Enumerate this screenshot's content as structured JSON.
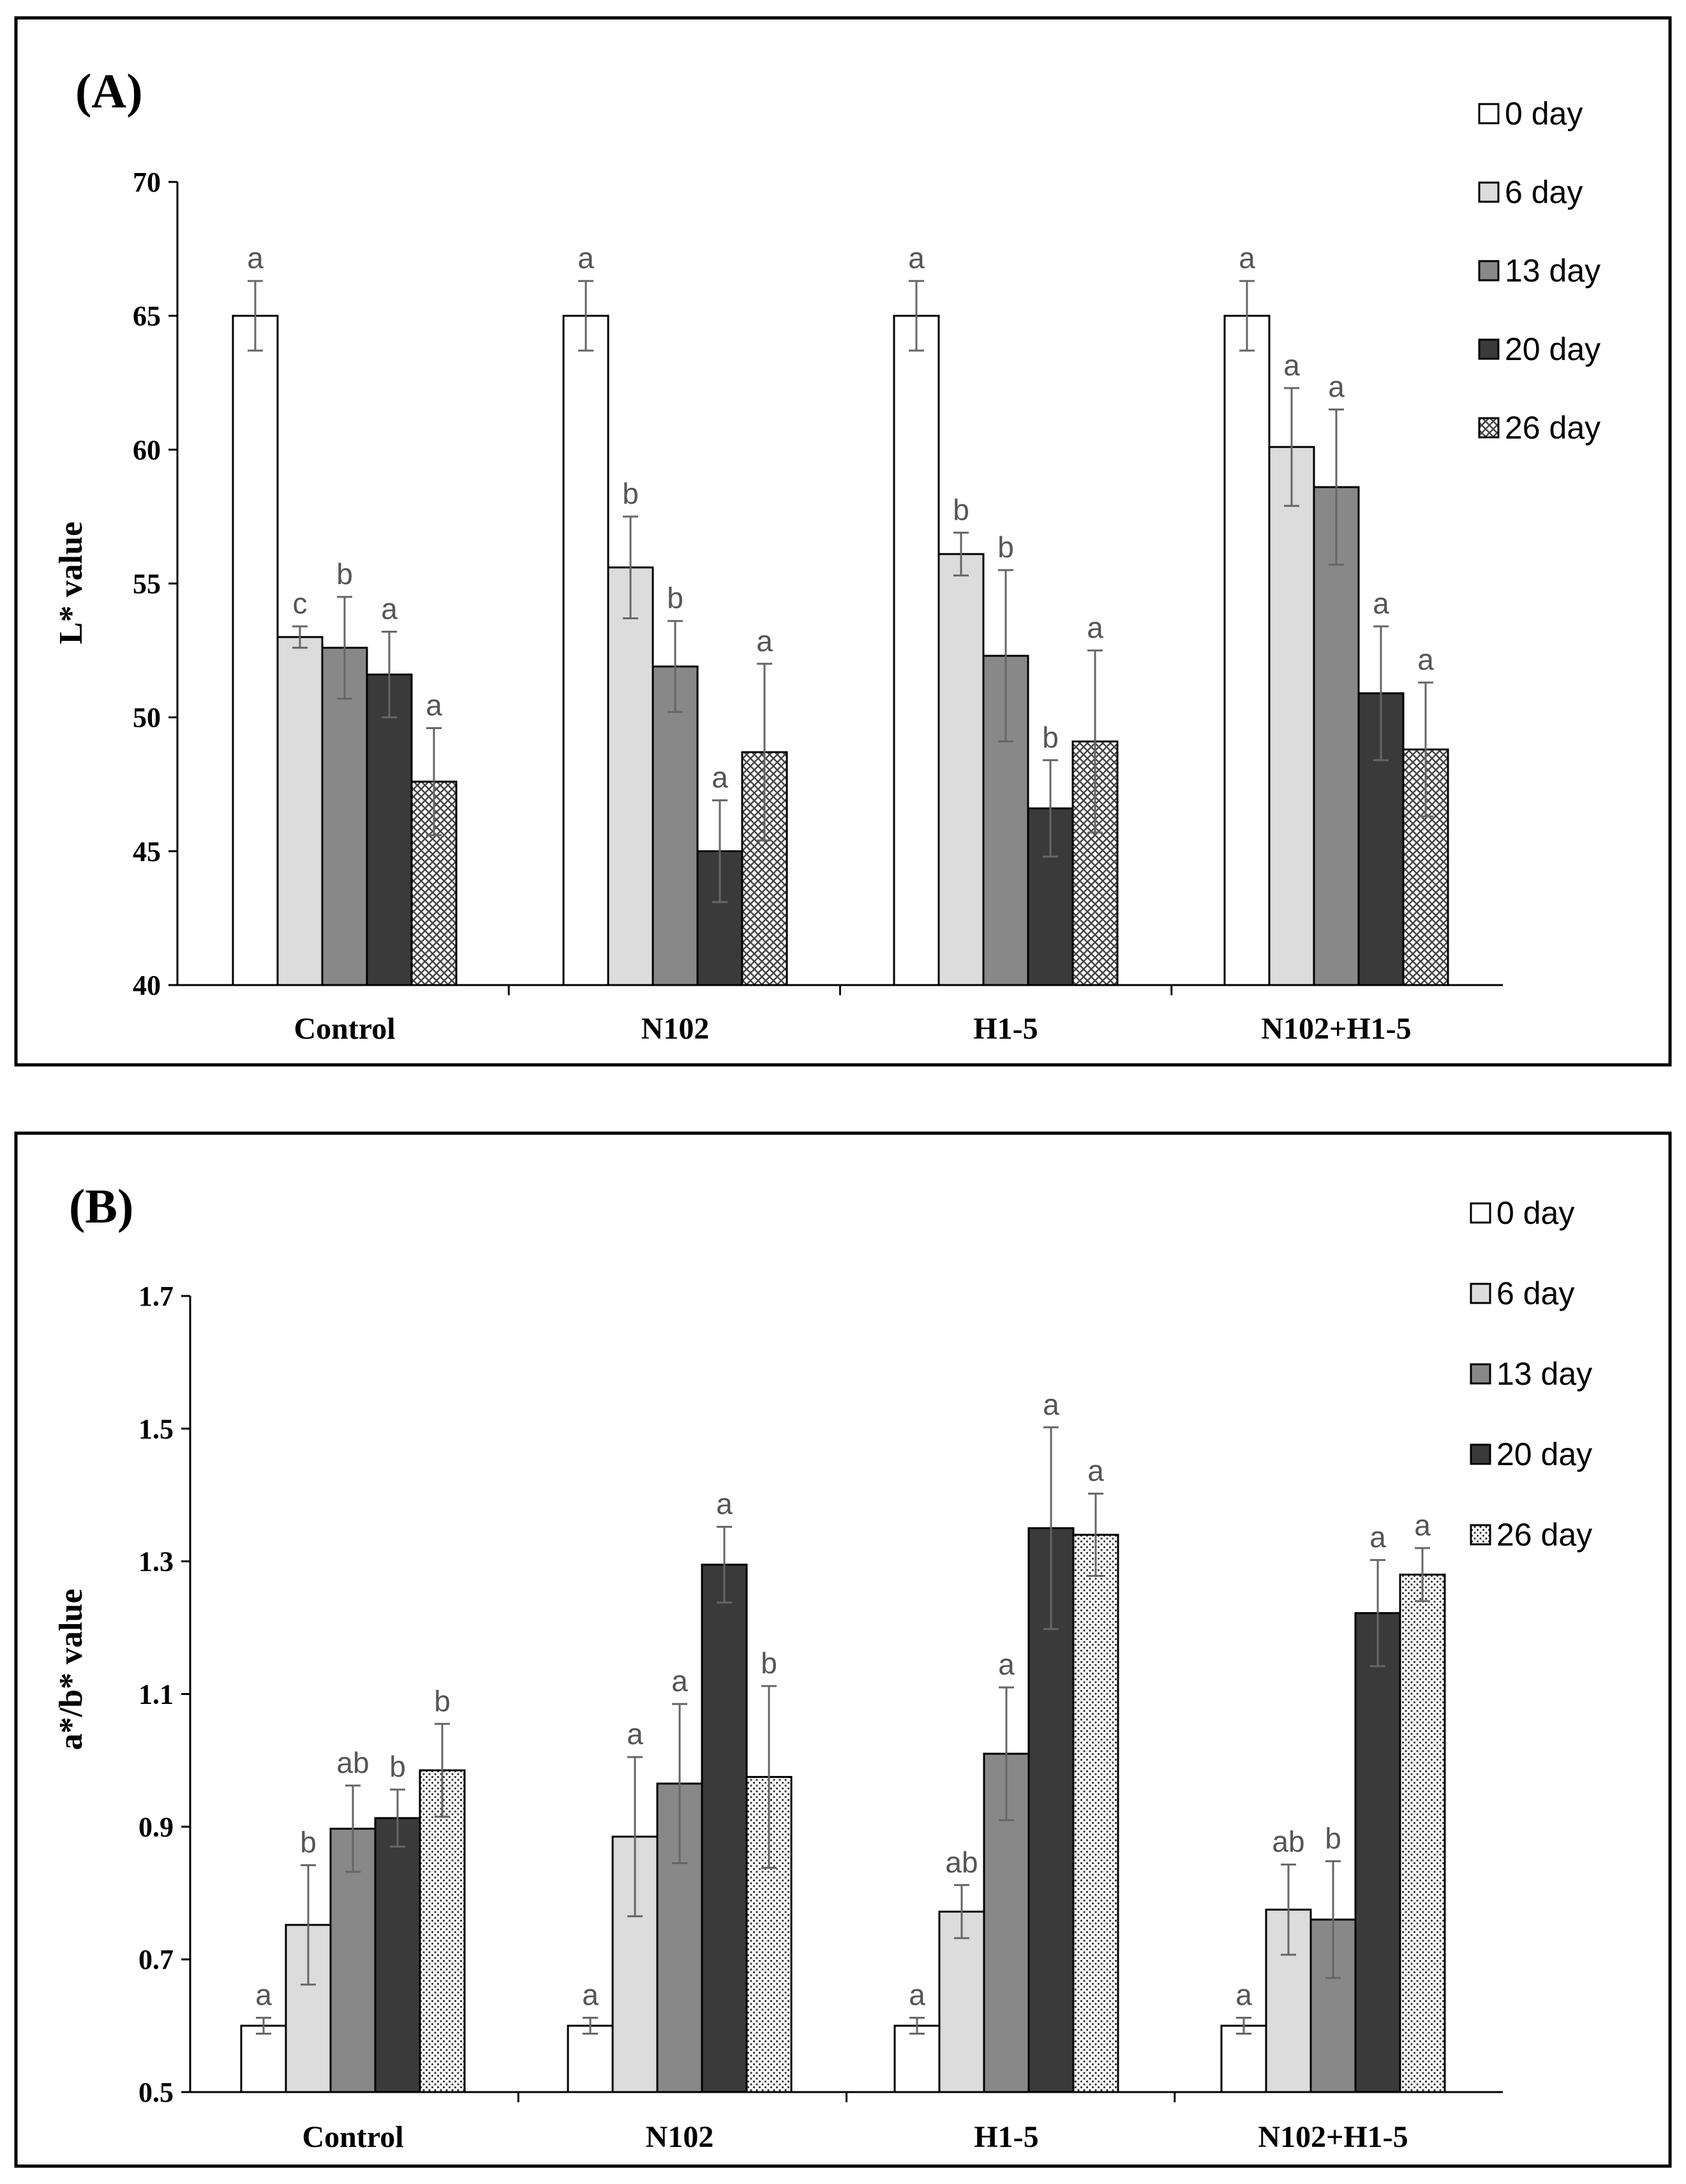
{
  "chart_data": [
    {
      "type": "bar",
      "panel_label": "(A)",
      "ylabel": "L* value",
      "ylim": [
        40,
        70
      ],
      "yticks": [
        "40",
        "45",
        "50",
        "55",
        "60",
        "65",
        "70"
      ],
      "categories": [
        "Control",
        "N102",
        "H1-5",
        "N102+H1-5"
      ],
      "legend_position": "top-right",
      "series": [
        {
          "name": "0 day",
          "color": "#ffffff",
          "pattern": "none",
          "values": [
            65,
            65,
            65,
            65
          ],
          "errors": [
            1.3,
            1.3,
            1.3,
            1.3
          ],
          "letters": [
            "a",
            "a",
            "a",
            "a"
          ]
        },
        {
          "name": "6 day",
          "color": "#dcdcdc",
          "pattern": "none",
          "values": [
            53,
            55.6,
            56.1,
            60.1
          ],
          "errors": [
            0.4,
            1.9,
            0.8,
            2.2
          ],
          "letters": [
            "c",
            "b",
            "b",
            "a"
          ]
        },
        {
          "name": "13 day",
          "color": "#888888",
          "pattern": "none",
          "values": [
            52.6,
            51.9,
            52.3,
            58.6
          ],
          "errors": [
            1.9,
            1.7,
            3.2,
            2.9
          ],
          "letters": [
            "b",
            "b",
            "b",
            "a"
          ]
        },
        {
          "name": "20 day",
          "color": "#3a3a3a",
          "pattern": "none",
          "values": [
            51.6,
            45,
            46.6,
            50.9
          ],
          "errors": [
            1.6,
            1.9,
            1.8,
            2.5
          ],
          "letters": [
            "a",
            "a",
            "b",
            "a"
          ]
        },
        {
          "name": "26 day",
          "color": "#ffffff",
          "pattern": "crosshatch",
          "values": [
            47.6,
            48.7,
            49.1,
            48.8
          ],
          "errors": [
            2.0,
            3.3,
            3.4,
            2.5
          ],
          "letters": [
            "a",
            "a",
            "a",
            "a"
          ]
        }
      ]
    },
    {
      "type": "bar",
      "panel_label": "(B)",
      "ylabel": "a*/b* value",
      "ylim": [
        0.5,
        1.7
      ],
      "yticks": [
        "0.5",
        "0.7",
        "0.9",
        "1.1",
        "1.3",
        "1.5",
        "1.7"
      ],
      "categories": [
        "Control",
        "N102",
        "H1-5",
        "N102+H1-5"
      ],
      "legend_position": "top-right",
      "series": [
        {
          "name": "0 day",
          "color": "#ffffff",
          "pattern": "none",
          "values": [
            0.6,
            0.6,
            0.6,
            0.6
          ],
          "errors": [
            0.012,
            0.012,
            0.012,
            0.012
          ],
          "letters": [
            "a",
            "a",
            "a",
            "a"
          ]
        },
        {
          "name": "6 day",
          "color": "#dcdcdc",
          "pattern": "none",
          "values": [
            0.752,
            0.885,
            0.772,
            0.775
          ],
          "errors": [
            0.09,
            0.12,
            0.04,
            0.068
          ],
          "letters": [
            "b",
            "a",
            "ab",
            "ab"
          ]
        },
        {
          "name": "13 day",
          "color": "#888888",
          "pattern": "none",
          "values": [
            0.897,
            0.965,
            1.01,
            0.76
          ],
          "errors": [
            0.065,
            0.12,
            0.1,
            0.088
          ],
          "letters": [
            "ab",
            "a",
            "a",
            "b"
          ]
        },
        {
          "name": "20 day",
          "color": "#3a3a3a",
          "pattern": "none",
          "values": [
            0.913,
            1.295,
            1.35,
            1.222
          ],
          "errors": [
            0.043,
            0.057,
            0.152,
            0.08
          ],
          "letters": [
            "b",
            "a",
            "a",
            "a"
          ]
        },
        {
          "name": "26 day",
          "color": "#ffffff",
          "pattern": "dots",
          "values": [
            0.985,
            0.975,
            1.34,
            1.28
          ],
          "errors": [
            0.07,
            0.137,
            0.062,
            0.04
          ],
          "letters": [
            "b",
            "b",
            "a",
            "a"
          ]
        }
      ]
    }
  ]
}
